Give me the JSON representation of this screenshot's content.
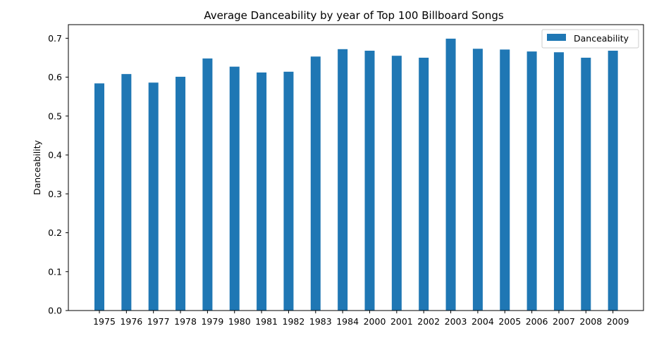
{
  "chart_data": {
    "type": "bar",
    "title": "Average Danceability by year of Top 100 Billboard Songs",
    "xlabel": "",
    "ylabel": "Danceability",
    "categories": [
      "1975",
      "1976",
      "1977",
      "1978",
      "1979",
      "1980",
      "1981",
      "1982",
      "1983",
      "1984",
      "2000",
      "2001",
      "2002",
      "2003",
      "2004",
      "2005",
      "2006",
      "2007",
      "2008",
      "2009"
    ],
    "series": [
      {
        "name": "Danceability",
        "color": "#1f77b4",
        "values": [
          0.584,
          0.608,
          0.586,
          0.601,
          0.648,
          0.627,
          0.612,
          0.614,
          0.653,
          0.672,
          0.668,
          0.655,
          0.65,
          0.699,
          0.673,
          0.671,
          0.666,
          0.664,
          0.65,
          0.668
        ]
      }
    ],
    "ylim": [
      0,
      0.735
    ],
    "yticks": [
      "0.0",
      "0.1",
      "0.2",
      "0.3",
      "0.4",
      "0.5",
      "0.6",
      "0.7"
    ],
    "legend_position": "top-right",
    "grid": false
  }
}
